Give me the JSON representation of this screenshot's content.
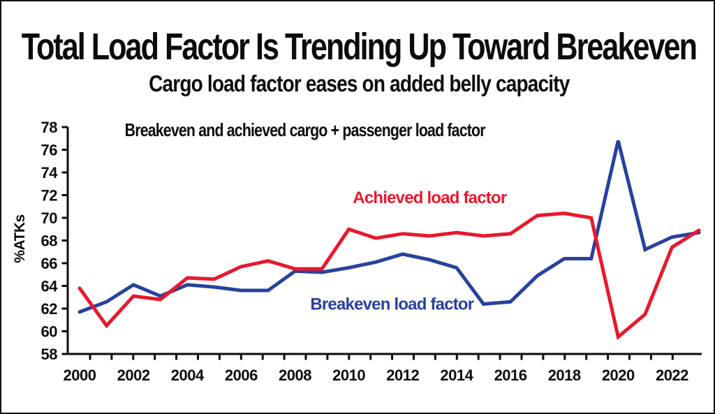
{
  "header": {
    "title": "Total Load Factor Is Trending Up Toward Breakeven",
    "subtitle": "Cargo load factor eases on added belly capacity"
  },
  "chart_data": {
    "type": "line",
    "title": "Breakeven and achieved cargo + passenger load factor",
    "xlabel": "",
    "ylabel": "%ATKs",
    "ylim": [
      58,
      78
    ],
    "yticks": [
      58,
      60,
      62,
      64,
      66,
      68,
      70,
      72,
      74,
      76,
      78
    ],
    "x": [
      2000,
      2001,
      2002,
      2003,
      2004,
      2005,
      2006,
      2007,
      2008,
      2009,
      2010,
      2011,
      2012,
      2013,
      2014,
      2015,
      2016,
      2017,
      2018,
      2019,
      2020,
      2021,
      2022,
      2023
    ],
    "xtick_labels": [
      "2000",
      "2002",
      "2004",
      "2006",
      "2008",
      "2010",
      "2012",
      "2014",
      "2016",
      "2018",
      "2020",
      "2022"
    ],
    "grid": false,
    "legend_position": "inline-annotations",
    "series": [
      {
        "name": "Breakeven load factor",
        "color": "#27419d",
        "values": [
          61.7,
          62.6,
          64.1,
          63.1,
          64.1,
          63.9,
          63.6,
          63.6,
          65.3,
          65.2,
          65.6,
          66.1,
          66.8,
          66.3,
          65.6,
          62.4,
          62.6,
          64.9,
          66.4,
          66.4,
          76.8,
          67.2,
          68.3,
          68.7
        ]
      },
      {
        "name": "Achieved load factor",
        "color": "#e8192d",
        "values": [
          63.8,
          60.5,
          63.1,
          62.8,
          64.7,
          64.6,
          65.7,
          66.2,
          65.5,
          65.5,
          69.0,
          68.2,
          68.6,
          68.4,
          68.7,
          68.4,
          68.6,
          70.2,
          70.4,
          70.0,
          59.5,
          61.5,
          67.4,
          68.9
        ]
      }
    ],
    "annotations": [
      {
        "text": "Achieved load factor",
        "color": "#e8192d",
        "year": 2013.0,
        "value": 71.3
      },
      {
        "text": "Breakeven load factor",
        "color": "#27419d",
        "year": 2011.6,
        "value": 61.9
      }
    ]
  }
}
